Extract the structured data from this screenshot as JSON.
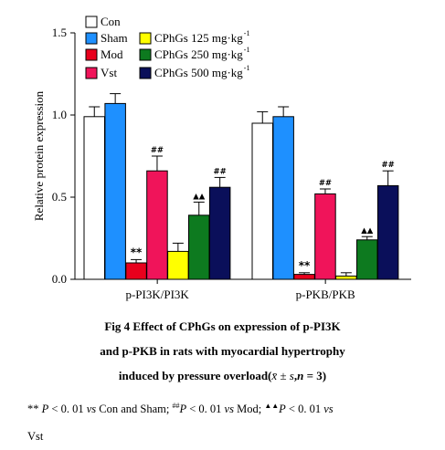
{
  "chart_data": {
    "type": "bar",
    "ylabel": "Relative protein expression",
    "ylim": [
      0,
      1.5
    ],
    "yticks": [
      "0.0",
      "0.5",
      "1.0",
      "1.5"
    ],
    "categories": [
      "p-PI3K/PI3K",
      "p-PKB/PKB"
    ],
    "series": [
      {
        "name": "Con",
        "color": "#ffffff",
        "values": [
          0.99,
          0.95
        ],
        "errors": [
          0.06,
          0.07
        ],
        "marks": [
          "",
          ""
        ]
      },
      {
        "name": "Sham",
        "color": "#1e90ff",
        "values": [
          1.07,
          0.99
        ],
        "errors": [
          0.06,
          0.06
        ],
        "marks": [
          "",
          ""
        ]
      },
      {
        "name": "Mod",
        "color": "#e8001c",
        "values": [
          0.1,
          0.03
        ],
        "errors": [
          0.02,
          0.01
        ],
        "marks": [
          "**",
          "**"
        ]
      },
      {
        "name": "Vst",
        "color": "#f0145a",
        "values": [
          0.66,
          0.52
        ],
        "errors": [
          0.09,
          0.03
        ],
        "marks": [
          "##",
          "##"
        ]
      },
      {
        "name": "CPhGs 125 mg·kg",
        "color": "#ffff00",
        "values": [
          0.17,
          0.02
        ],
        "errors": [
          0.05,
          0.02
        ],
        "marks": [
          "",
          ""
        ]
      },
      {
        "name": "CPhGs 250 mg·kg",
        "color": "#0d7a1f",
        "values": [
          0.39,
          0.24
        ],
        "errors": [
          0.08,
          0.02
        ],
        "marks": [
          "▲▲",
          "▲▲"
        ]
      },
      {
        "name": "CPhGs 500 mg·kg",
        "color": "#0a0f5a",
        "values": [
          0.56,
          0.57
        ],
        "errors": [
          0.06,
          0.09
        ],
        "marks": [
          "##",
          "##"
        ]
      }
    ],
    "legend_sup": "-1",
    "legend_position": "top-left"
  },
  "caption": {
    "line1": "Fig 4    Effect of CPhGs on expression of p-PI3K",
    "line2": "and p-PKB in rats with myocardial hypertrophy",
    "line3a": "induced by pressure overload(",
    "line3b": "x̄ ± s",
    "line3c": ",",
    "line3d": "n",
    "line3e": " = 3)"
  },
  "notes": {
    "n1": "**",
    "n2": " P",
    "n3": " < 0. 01 ",
    "n4": "vs",
    "n5": " Con and Sham; ",
    "n6": "##",
    "n7": "P",
    "n8": " < 0. 01 ",
    "n9": "vs",
    "n10": " Mod; ",
    "n11": "▲▲",
    "n12": "P",
    "n13": " < 0. 01 ",
    "n14": "vs",
    "n15": "Vst"
  }
}
